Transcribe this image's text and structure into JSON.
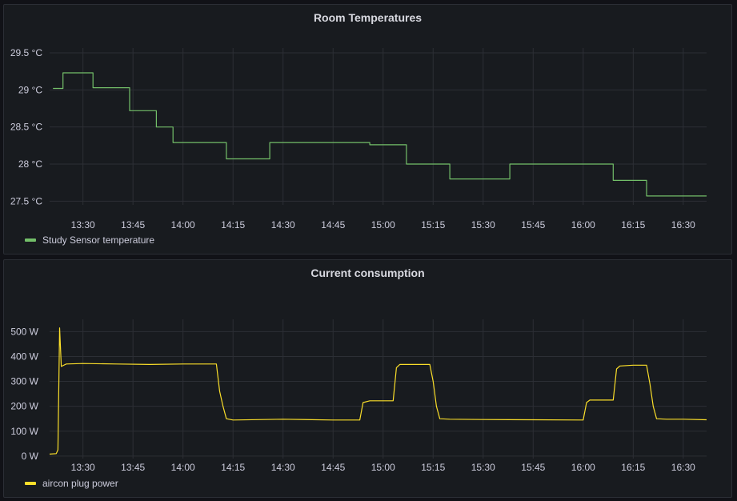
{
  "chart_data": [
    {
      "type": "line",
      "title": "Room Temperatures",
      "x_ticks": [
        "13:30",
        "13:45",
        "14:00",
        "14:15",
        "14:30",
        "14:45",
        "15:00",
        "15:15",
        "15:30",
        "15:45",
        "16:00",
        "16:15",
        "16:30"
      ],
      "y_ticks": [
        "27.5 °C",
        "28 °C",
        "28.5 °C",
        "29 °C",
        "29.5 °C"
      ],
      "ylim": [
        27.45,
        29.5
      ],
      "xlim": [
        "13:20",
        "16:37"
      ],
      "grid": true,
      "legend_position": "bottom-left",
      "series": [
        {
          "name": "Study Sensor temperature",
          "color": "#73bf69",
          "step": true,
          "points": [
            [
              "13:21",
              29.02
            ],
            [
              "13:24",
              29.23
            ],
            [
              "13:33",
              29.03
            ],
            [
              "13:44",
              28.72
            ],
            [
              "13:52",
              28.5
            ],
            [
              "13:57",
              28.29
            ],
            [
              "14:13",
              28.07
            ],
            [
              "14:26",
              28.29
            ],
            [
              "14:56",
              28.26
            ],
            [
              "15:07",
              28.0
            ],
            [
              "15:20",
              27.8
            ],
            [
              "15:38",
              28.0
            ],
            [
              "16:09",
              27.78
            ],
            [
              "16:19",
              27.57
            ],
            [
              "16:37",
              27.57
            ]
          ]
        }
      ]
    },
    {
      "type": "line",
      "title": "Current consumption",
      "x_ticks": [
        "13:30",
        "13:45",
        "14:00",
        "14:15",
        "14:30",
        "14:45",
        "15:00",
        "15:15",
        "15:30",
        "15:45",
        "16:00",
        "16:15",
        "16:30"
      ],
      "y_ticks": [
        "0 W",
        "100 W",
        "200 W",
        "300 W",
        "400 W",
        "500 W"
      ],
      "ylim": [
        -10,
        530
      ],
      "xlim": [
        "13:20",
        "16:37"
      ],
      "grid": true,
      "legend_position": "bottom-left",
      "series": [
        {
          "name": "aircon plug power",
          "color": "#fade2a",
          "step": false,
          "points": [
            [
              "13:20",
              8
            ],
            [
              "13:22",
              10
            ],
            [
              "13:22.5",
              25
            ],
            [
              "13:23",
              515
            ],
            [
              "13:23.5",
              360
            ],
            [
              "13:25",
              370
            ],
            [
              "13:30",
              372
            ],
            [
              "13:40",
              370
            ],
            [
              "13:50",
              368
            ],
            [
              "14:00",
              370
            ],
            [
              "14:10",
              370
            ],
            [
              "14:11",
              260
            ],
            [
              "14:12",
              200
            ],
            [
              "14:13",
              150
            ],
            [
              "14:15",
              145
            ],
            [
              "14:30",
              148
            ],
            [
              "14:45",
              145
            ],
            [
              "14:53",
              145
            ],
            [
              "14:54",
              215
            ],
            [
              "14:56",
              222
            ],
            [
              "15:03",
              222
            ],
            [
              "15:04",
              355
            ],
            [
              "15:05",
              368
            ],
            [
              "15:10",
              368
            ],
            [
              "15:14",
              368
            ],
            [
              "15:15",
              300
            ],
            [
              "15:16",
              200
            ],
            [
              "15:17",
              150
            ],
            [
              "15:20",
              148
            ],
            [
              "15:30",
              147
            ],
            [
              "15:45",
              146
            ],
            [
              "16:00",
              145
            ],
            [
              "16:01",
              215
            ],
            [
              "16:02",
              225
            ],
            [
              "16:09",
              225
            ],
            [
              "16:10",
              350
            ],
            [
              "16:11",
              362
            ],
            [
              "16:15",
              365
            ],
            [
              "16:19",
              365
            ],
            [
              "16:20",
              290
            ],
            [
              "16:21",
              200
            ],
            [
              "16:22",
              150
            ],
            [
              "16:25",
              148
            ],
            [
              "16:30",
              148
            ],
            [
              "16:37",
              146
            ]
          ]
        }
      ]
    }
  ]
}
